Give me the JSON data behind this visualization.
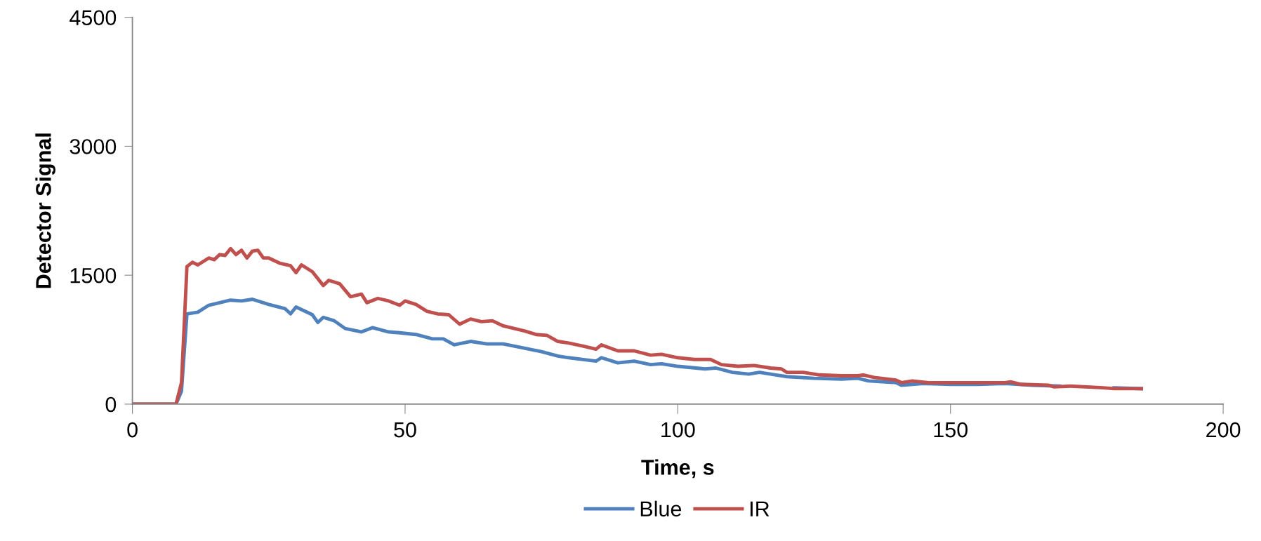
{
  "chart_data": {
    "type": "line",
    "xlabel": "Time, s",
    "ylabel": "Detector Signal",
    "xlim": [
      0,
      200
    ],
    "xticks": [
      0,
      50,
      100,
      150,
      200
    ],
    "ylim": [
      0,
      4500
    ],
    "yticks": [
      0,
      1500,
      3000,
      4500
    ],
    "grid": false,
    "legend": "bottom",
    "marker": "none",
    "line_style": "solid",
    "series": [
      {
        "name": "Blue",
        "color": "#4f81bd",
        "x": [
          0,
          8,
          9,
          10,
          12,
          14,
          16,
          18,
          20,
          22,
          25,
          28,
          29,
          30,
          33,
          34,
          35,
          37,
          39,
          42,
          44,
          47,
          49,
          52,
          55,
          57,
          59,
          62,
          65,
          68,
          72,
          75,
          78,
          80,
          85,
          86,
          89,
          92,
          95,
          97,
          100,
          105,
          107,
          110,
          113,
          115,
          118,
          120,
          125,
          130,
          133,
          135,
          140,
          141,
          145,
          150,
          155,
          160,
          165,
          170,
          175,
          180,
          185
        ],
        "values": [
          0,
          0,
          150,
          1050,
          1070,
          1150,
          1180,
          1210,
          1200,
          1220,
          1160,
          1110,
          1050,
          1130,
          1040,
          950,
          1010,
          970,
          880,
          840,
          890,
          840,
          830,
          810,
          760,
          760,
          690,
          730,
          700,
          700,
          650,
          610,
          560,
          540,
          500,
          540,
          480,
          500,
          460,
          470,
          440,
          410,
          420,
          370,
          350,
          370,
          340,
          320,
          300,
          290,
          300,
          270,
          250,
          220,
          240,
          230,
          230,
          240,
          220,
          210,
          null,
          190,
          180
        ]
      },
      {
        "name": "IR",
        "color": "#c0504d",
        "x": [
          0,
          8,
          9,
          10,
          11,
          12,
          14,
          15,
          16,
          17,
          18,
          19,
          20,
          21,
          22,
          23,
          24,
          25,
          27,
          29,
          30,
          31,
          33,
          35,
          36,
          38,
          40,
          42,
          43,
          45,
          47,
          49,
          50,
          52,
          54,
          56,
          58,
          60,
          62,
          64,
          66,
          68,
          70,
          72,
          74,
          76,
          78,
          80,
          83,
          85,
          86,
          89,
          92,
          95,
          97,
          100,
          103,
          106,
          108,
          111,
          114,
          117,
          119,
          120,
          123,
          126,
          130,
          133,
          134,
          136,
          140,
          141,
          143,
          146,
          150,
          155,
          160,
          161,
          163,
          168,
          169,
          172,
          178,
          180,
          185
        ],
        "values": [
          0,
          0,
          250,
          1600,
          1650,
          1620,
          1700,
          1680,
          1740,
          1730,
          1810,
          1740,
          1790,
          1700,
          1780,
          1790,
          1700,
          1700,
          1640,
          1610,
          1530,
          1620,
          1540,
          1380,
          1440,
          1400,
          1250,
          1280,
          1180,
          1230,
          1200,
          1150,
          1200,
          1160,
          1080,
          1050,
          1040,
          930,
          990,
          960,
          970,
          910,
          880,
          850,
          810,
          800,
          730,
          710,
          670,
          640,
          690,
          620,
          620,
          570,
          580,
          540,
          520,
          520,
          460,
          440,
          450,
          420,
          410,
          370,
          370,
          340,
          330,
          330,
          340,
          310,
          280,
          250,
          270,
          250,
          250,
          250,
          250,
          260,
          230,
          220,
          200,
          210,
          190,
          180,
          180
        ]
      }
    ]
  }
}
